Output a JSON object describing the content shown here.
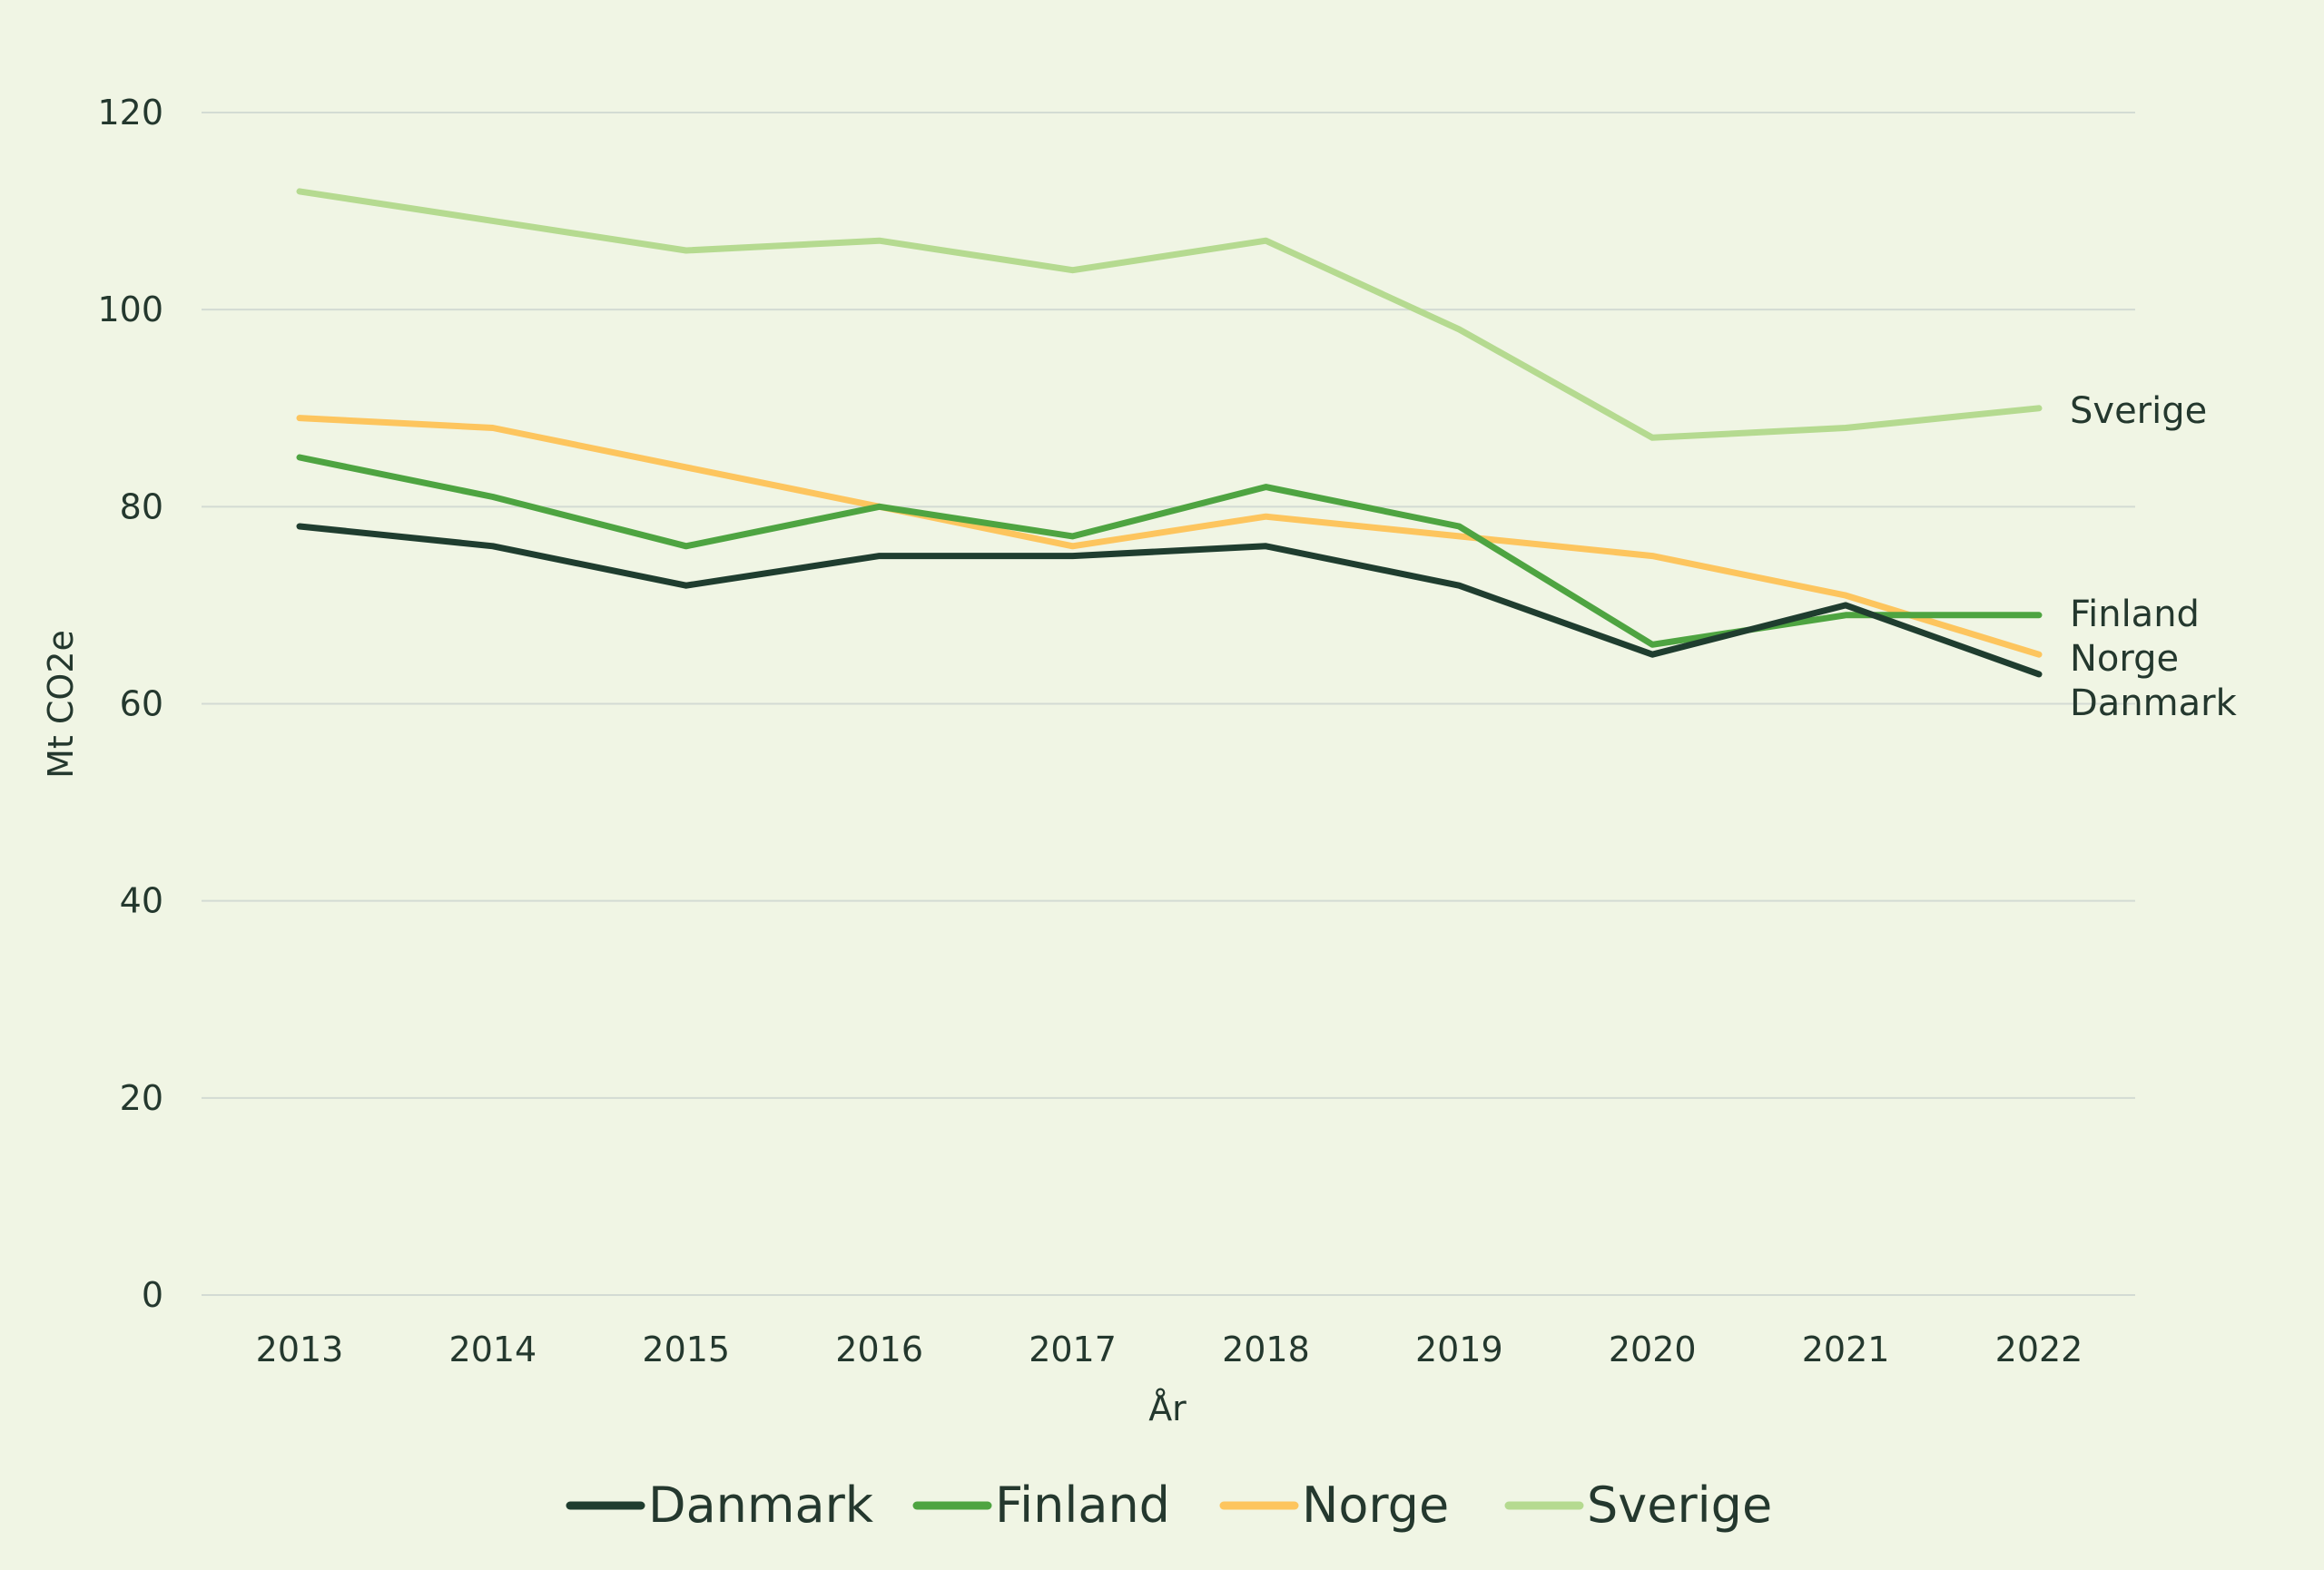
{
  "chart_data": {
    "type": "line",
    "xlabel": "År",
    "ylabel": "Mt CO2e",
    "x": [
      2013,
      2014,
      2015,
      2016,
      2017,
      2018,
      2019,
      2020,
      2021,
      2022
    ],
    "ylim": [
      0,
      120
    ],
    "yticks": [
      0,
      20,
      40,
      60,
      80,
      100,
      120
    ],
    "grid": true,
    "legend_position": "bottom",
    "series": [
      {
        "name": "Danmark",
        "color": "#1f3d2f",
        "values": [
          78,
          76,
          72,
          75,
          75,
          76,
          72,
          65,
          70,
          63
        ]
      },
      {
        "name": "Finland",
        "color": "#4ea441",
        "values": [
          85,
          81,
          76,
          80,
          77,
          82,
          78,
          66,
          69,
          69
        ]
      },
      {
        "name": "Norge",
        "color": "#fdc55e",
        "values": [
          89,
          88,
          84,
          80,
          76,
          79,
          77,
          75,
          71,
          65
        ]
      },
      {
        "name": "Sverige",
        "color": "#b5da90",
        "values": [
          112,
          109,
          106,
          107,
          104,
          107,
          98,
          87,
          88,
          90
        ]
      }
    ],
    "end_labels": [
      "Danmark",
      "Finland",
      "Norge",
      "Sverige"
    ]
  }
}
